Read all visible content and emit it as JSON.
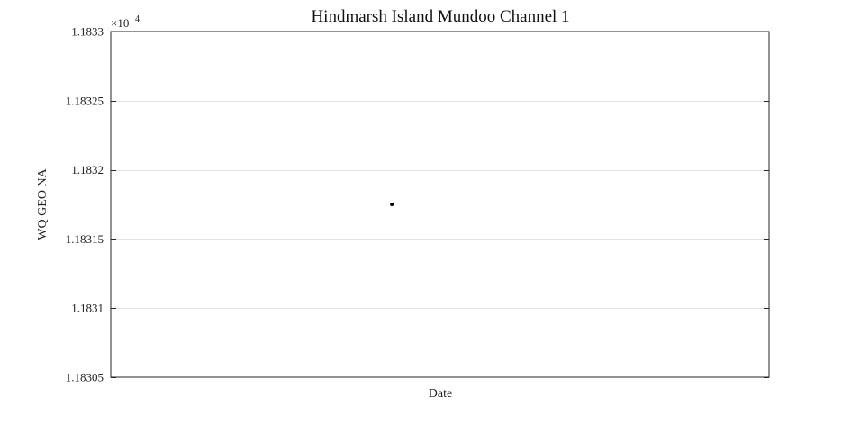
{
  "chart_data": {
    "type": "scatter",
    "title": "Hindmarsh Island Mundoo Channel 1",
    "xlabel": "Date",
    "ylabel": "WQ GEO NA",
    "y_multiplier": "×10",
    "y_multiplier_exp": "4",
    "yticks": [
      1.18305,
      1.1831,
      1.18315,
      1.1832,
      1.18325,
      1.1833
    ],
    "ytick_labels": [
      "1.18305",
      "1.1831",
      "1.18315",
      "1.1832",
      "1.18325",
      "1.1833"
    ],
    "ylim": [
      1.18305,
      1.1833
    ],
    "xlim": [
      0,
      1
    ],
    "grid": "horizontal",
    "points": [
      {
        "x": 0.427,
        "y": 1.183175
      }
    ],
    "colors": {
      "marker": "#000000",
      "grid": "#e3e3e3",
      "axis": "#262626"
    }
  }
}
